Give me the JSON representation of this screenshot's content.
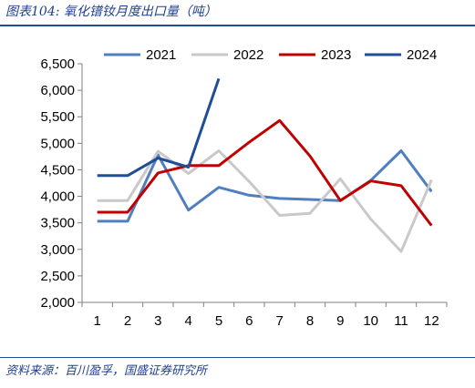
{
  "header": {
    "title": "图表104: 氧化镨钕月度出口量（吨）"
  },
  "footer": {
    "source": "资料来源：百川盈孚，国盛证券研究所"
  },
  "chart_data": {
    "type": "line",
    "title": "图表104: 氧化镨钕月度出口量（吨）",
    "xlabel": "",
    "ylabel": "",
    "x": [
      1,
      2,
      3,
      4,
      5,
      6,
      7,
      8,
      9,
      10,
      11,
      12
    ],
    "ylim": [
      2000,
      6500
    ],
    "yticks": [
      2000,
      2500,
      3000,
      3500,
      4000,
      4500,
      5000,
      5500,
      6000,
      6500
    ],
    "ytick_labels": [
      "2,000",
      "2,500",
      "3,000",
      "3,500",
      "4,000",
      "4,500",
      "5,000",
      "5,500",
      "6,000",
      "6,500"
    ],
    "grid": false,
    "legend_position": "top",
    "series": [
      {
        "name": "2021",
        "color": "#4f7fc0",
        "values": [
          3530,
          3530,
          4780,
          3740,
          4170,
          4020,
          3960,
          3940,
          3920,
          4300,
          4860,
          4090
        ]
      },
      {
        "name": "2022",
        "color": "#c9c9c9",
        "values": [
          3920,
          3920,
          4850,
          4430,
          4860,
          4280,
          3640,
          3680,
          4330,
          3570,
          2960,
          4310
        ]
      },
      {
        "name": "2023",
        "color": "#c00000",
        "values": [
          3700,
          3700,
          4440,
          4580,
          4580,
          5020,
          5430,
          4760,
          3920,
          4290,
          4200,
          3450
        ]
      },
      {
        "name": "2024",
        "color": "#1f4e96",
        "values": [
          4390,
          4390,
          4720,
          4550,
          6220,
          null,
          null,
          null,
          null,
          null,
          null,
          null
        ]
      }
    ]
  }
}
